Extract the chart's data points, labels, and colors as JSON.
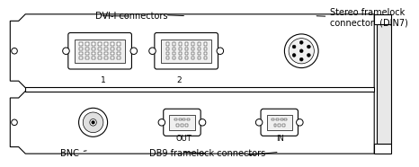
{
  "bg_color": "#ffffff",
  "line_color": "#000000",
  "card_fill": "#ffffff",
  "connector_fill": "#ffffff",
  "labels": {
    "dvi": "DVI-I connectors",
    "stereo": "Stereo framelock\nconnector  (DIN7)",
    "bnc": "BNC",
    "db9": "DB9 framelock connectors",
    "num1": "1",
    "num2": "2",
    "out": "OUT",
    "in": "IN"
  },
  "figsize": [
    4.66,
    1.86
  ],
  "dpi": 100
}
